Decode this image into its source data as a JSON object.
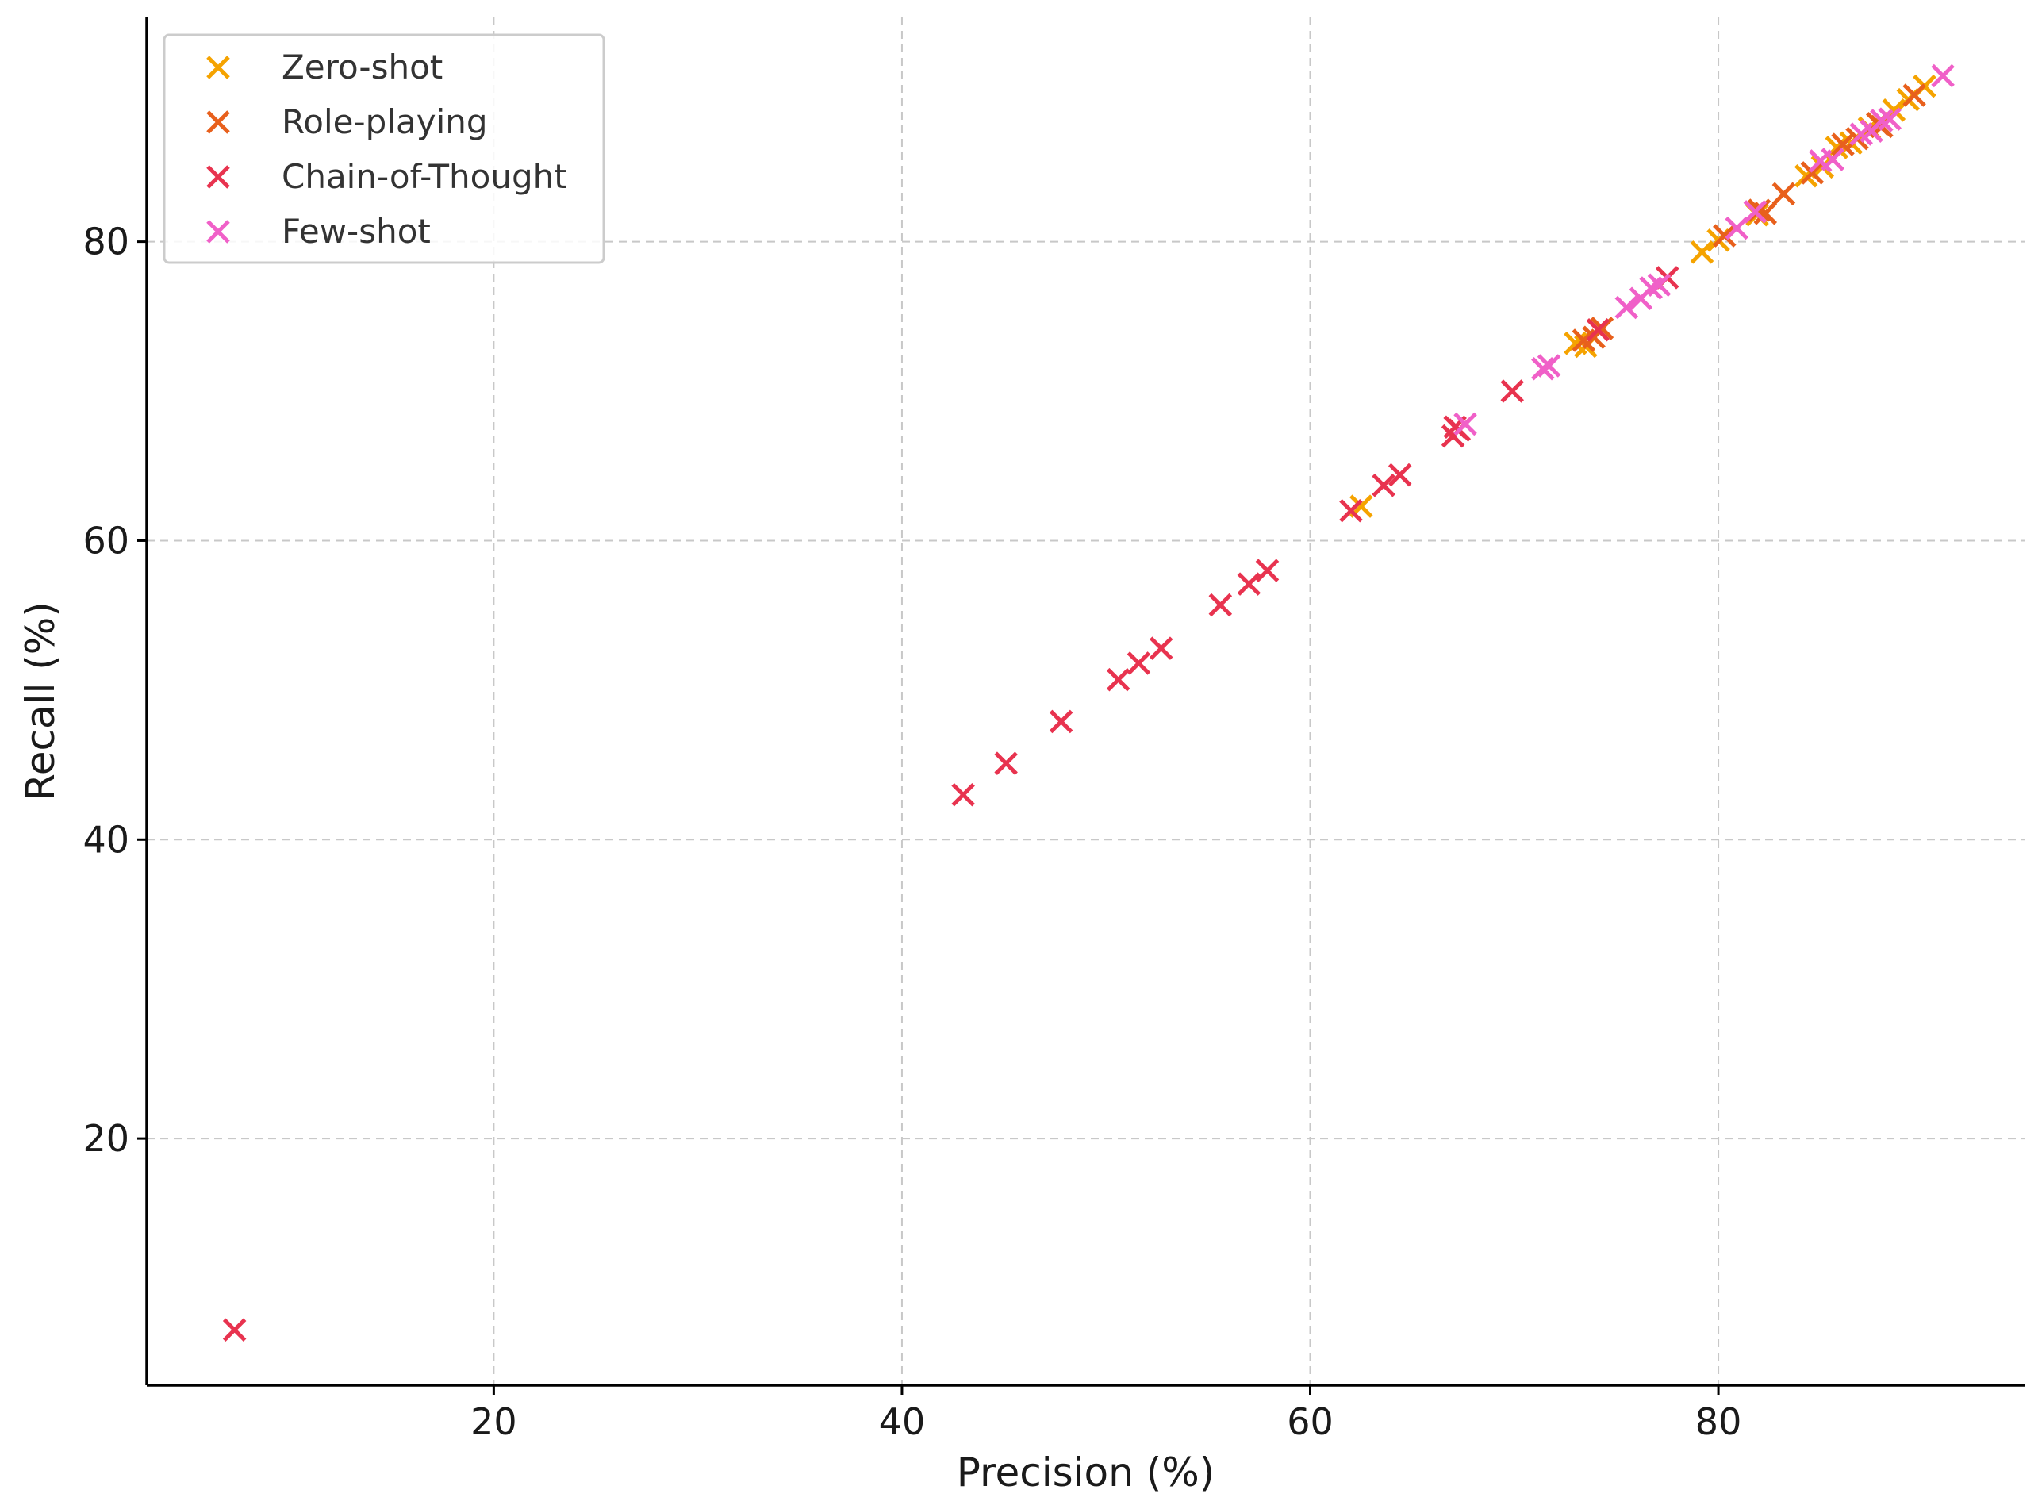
{
  "chart_data": {
    "type": "scatter",
    "title": "",
    "xlabel": "Precision (%)",
    "ylabel": "Recall (%)",
    "xlim": [
      3,
      95
    ],
    "ylim": [
      3.5,
      95
    ],
    "xticks": [
      20,
      40,
      60,
      80
    ],
    "yticks": [
      20,
      40,
      60,
      80
    ],
    "grid": true,
    "marker": "x",
    "legend_position": "top-left",
    "series": [
      {
        "name": "Zero-shot",
        "color": "#f5a300",
        "points": [
          [
            62.5,
            62.3
          ],
          [
            73.0,
            73.2
          ],
          [
            73.5,
            73.0
          ],
          [
            79.2,
            79.3
          ],
          [
            80.0,
            80.1
          ],
          [
            81.9,
            81.8
          ],
          [
            84.3,
            84.4
          ],
          [
            85.1,
            85.0
          ],
          [
            85.8,
            86.3
          ],
          [
            86.5,
            86.6
          ],
          [
            87.4,
            87.6
          ],
          [
            88.6,
            88.8
          ],
          [
            89.3,
            89.5
          ],
          [
            90.1,
            90.4
          ]
        ]
      },
      {
        "name": "Role-playing",
        "color": "#e8601c",
        "points": [
          [
            73.4,
            73.4
          ],
          [
            73.9,
            73.6
          ],
          [
            74.3,
            74.2
          ],
          [
            80.3,
            80.4
          ],
          [
            82.0,
            82.1
          ],
          [
            82.3,
            81.9
          ],
          [
            83.2,
            83.2
          ],
          [
            84.6,
            84.6
          ],
          [
            86.1,
            86.5
          ],
          [
            86.8,
            86.9
          ],
          [
            87.8,
            87.9
          ],
          [
            88.0,
            87.7
          ],
          [
            89.6,
            89.8
          ]
        ]
      },
      {
        "name": "Chain-of-Thought",
        "color": "#e8334f",
        "points": [
          [
            7.3,
            7.2
          ],
          [
            43.0,
            43.0
          ],
          [
            45.1,
            45.1
          ],
          [
            47.8,
            47.9
          ],
          [
            50.6,
            50.7
          ],
          [
            51.6,
            51.8
          ],
          [
            52.7,
            52.8
          ],
          [
            55.6,
            55.7
          ],
          [
            57.0,
            57.1
          ],
          [
            57.9,
            58.0
          ],
          [
            62.0,
            62.0
          ],
          [
            63.6,
            63.7
          ],
          [
            64.4,
            64.4
          ],
          [
            67.0,
            67.0
          ],
          [
            67.3,
            67.4
          ],
          [
            67.1,
            67.6
          ],
          [
            69.9,
            70.0
          ],
          [
            74.1,
            74.1
          ],
          [
            77.5,
            77.6
          ]
        ]
      },
      {
        "name": "Few-shot",
        "color": "#f060c8",
        "points": [
          [
            67.6,
            67.8
          ],
          [
            71.4,
            71.5
          ],
          [
            71.7,
            71.7
          ],
          [
            75.5,
            75.6
          ],
          [
            76.2,
            76.2
          ],
          [
            76.7,
            76.9
          ],
          [
            77.1,
            77.1
          ],
          [
            80.9,
            80.9
          ],
          [
            81.8,
            82.0
          ],
          [
            85.0,
            85.4
          ],
          [
            85.6,
            85.5
          ],
          [
            87.0,
            87.2
          ],
          [
            87.5,
            87.4
          ],
          [
            88.0,
            88.1
          ],
          [
            88.4,
            88.2
          ],
          [
            91.0,
            91.1
          ]
        ]
      }
    ]
  }
}
